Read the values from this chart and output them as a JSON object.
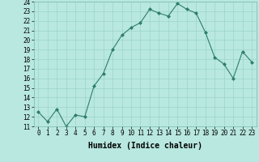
{
  "x": [
    0,
    1,
    2,
    3,
    4,
    5,
    6,
    7,
    8,
    9,
    10,
    11,
    12,
    13,
    14,
    15,
    16,
    17,
    18,
    19,
    20,
    21,
    22,
    23
  ],
  "y": [
    12.5,
    11.5,
    12.8,
    11.0,
    12.2,
    12.0,
    15.2,
    16.5,
    19.0,
    20.5,
    21.3,
    21.8,
    23.2,
    22.8,
    22.5,
    23.8,
    23.2,
    22.8,
    20.8,
    18.2,
    17.5,
    16.0,
    18.8,
    17.7
  ],
  "line_color": "#2e7d6e",
  "marker": "D",
  "marker_size": 2,
  "bg_color": "#b8e8e0",
  "grid_color": "#9dd4ca",
  "xlabel": "Humidex (Indice chaleur)",
  "ylim": [
    11,
    24
  ],
  "xlim": [
    -0.5,
    23.5
  ],
  "yticks": [
    11,
    12,
    13,
    14,
    15,
    16,
    17,
    18,
    19,
    20,
    21,
    22,
    23,
    24
  ],
  "xticks": [
    0,
    1,
    2,
    3,
    4,
    5,
    6,
    7,
    8,
    9,
    10,
    11,
    12,
    13,
    14,
    15,
    16,
    17,
    18,
    19,
    20,
    21,
    22,
    23
  ],
  "xlabel_fontsize": 7,
  "tick_fontsize": 5.5
}
